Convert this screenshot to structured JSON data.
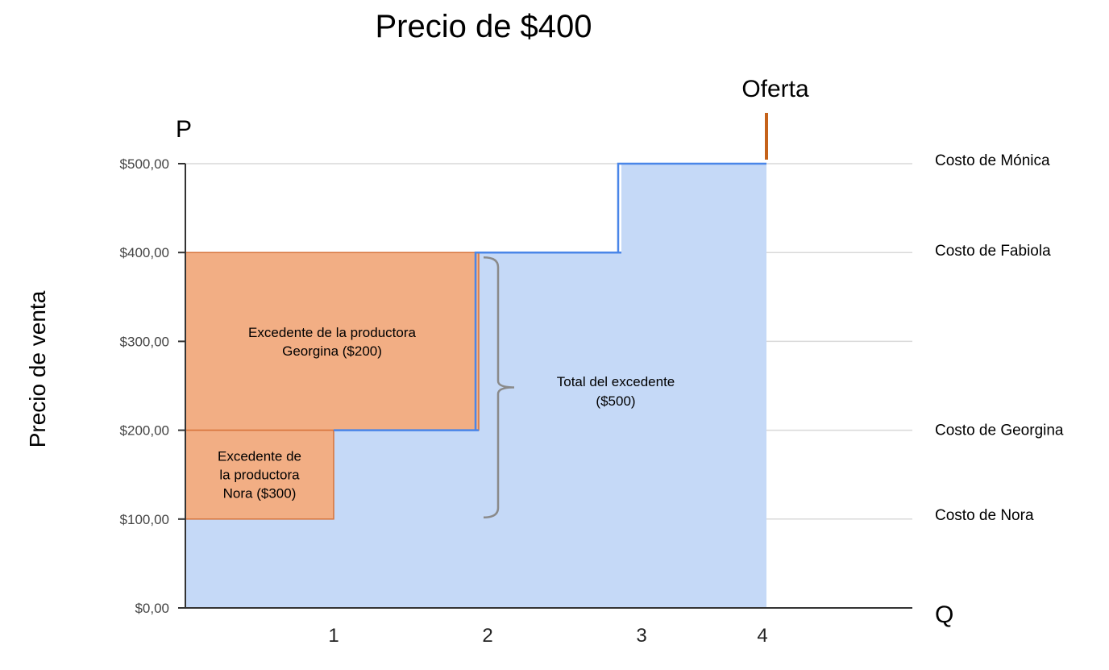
{
  "chart_data": {
    "type": "area",
    "title": "Precio de $400",
    "ylabel": "Precio de venta",
    "y_axis_letter": "P",
    "x_axis_letter": "Q",
    "ylim": [
      0,
      500
    ],
    "xlim": [
      0,
      4.8
    ],
    "y_ticks": [
      {
        "value": 0,
        "label": "$0,00"
      },
      {
        "value": 100,
        "label": "$100,00"
      },
      {
        "value": 200,
        "label": "$200,00"
      },
      {
        "value": 300,
        "label": "$300,00"
      },
      {
        "value": 400,
        "label": "$400,00"
      },
      {
        "value": 500,
        "label": "$500,00"
      }
    ],
    "x_ticks": [
      {
        "value": 1,
        "label": "1"
      },
      {
        "value": 2,
        "label": "2"
      },
      {
        "value": 3,
        "label": "3"
      },
      {
        "value": 4,
        "label": "4"
      }
    ],
    "supply_steps": [
      {
        "x0": 0,
        "x1": 1,
        "y": 100
      },
      {
        "x0": 1,
        "x1": 2,
        "y": 200
      },
      {
        "x0": 2,
        "x1": 3,
        "y": 400
      },
      {
        "x0": 3,
        "x1": 4,
        "y": 500
      }
    ],
    "supply_label": "Oferta",
    "cost_labels": [
      {
        "y": 500,
        "label": "Costo de Mónica"
      },
      {
        "y": 400,
        "label": "Costo de Fabiola"
      },
      {
        "y": 200,
        "label": "Costo de Georgina"
      },
      {
        "y": 100,
        "label": "Costo de Nora"
      }
    ],
    "surplus_areas": [
      {
        "x0": 0,
        "x1": 2,
        "y0": 200,
        "y1": 400,
        "label_lines": [
          "Excedente de la productora",
          "Georgina ($200)"
        ]
      },
      {
        "x0": 0,
        "x1": 1,
        "y0": 100,
        "y1": 200,
        "label_lines": [
          "Excedente de",
          "la productora",
          "Nora ($300)"
        ]
      }
    ],
    "total_annotation": {
      "y0": 100,
      "y1": 400,
      "label_lines": [
        "Total del excedente",
        "($500)"
      ]
    },
    "colors": {
      "supply_fill": "#c5d9f7",
      "supply_line": "#4a86e8",
      "surplus_fill": "#f2ae84",
      "surplus_stroke": "#d7733a",
      "oferta_mark": "#c5621a",
      "grid": "#d9d9d9",
      "axis": "#333333",
      "brace": "#8a8a8a",
      "text": "#000000"
    }
  }
}
